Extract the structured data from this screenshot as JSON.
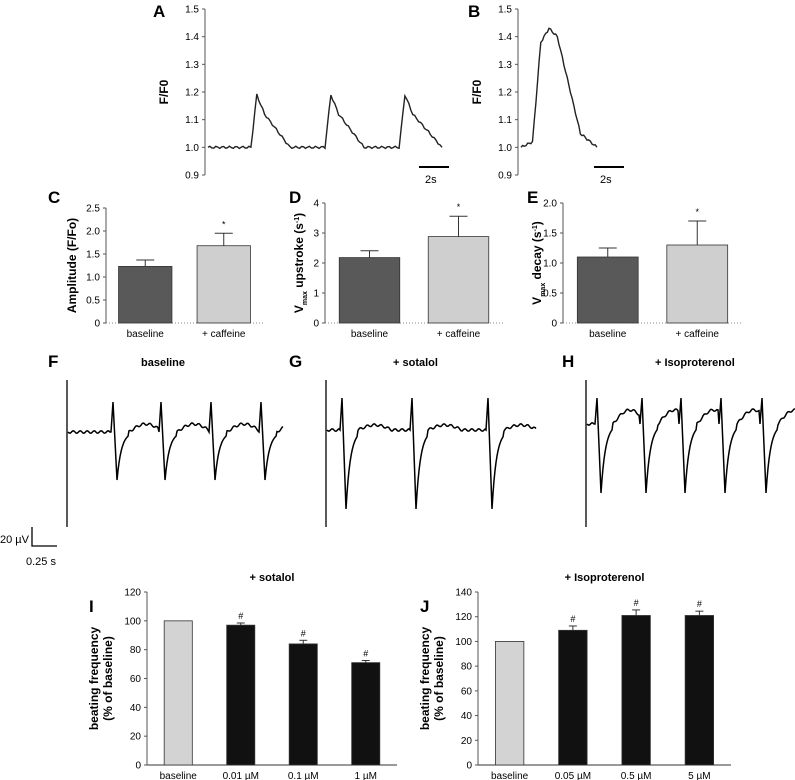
{
  "panels": {
    "A": {
      "label": "A"
    },
    "B": {
      "label": "B"
    },
    "C": {
      "label": "C"
    },
    "D": {
      "label": "D"
    },
    "E": {
      "label": "E"
    },
    "F": {
      "label": "F",
      "title": "baseline"
    },
    "G": {
      "label": "G",
      "title": "+ sotalol"
    },
    "H": {
      "label": "H",
      "title": "+ Isoproterenol"
    },
    "I": {
      "label": "I"
    },
    "J": {
      "label": "J"
    }
  },
  "scale_bars": {
    "calcium_time": "2s",
    "ecg_voltage": "20 µV",
    "ecg_time": "0.25 s"
  },
  "chart_data": [
    {
      "id": "A",
      "type": "line",
      "ylabel": "F/F0",
      "ylim": [
        0.9,
        1.5
      ],
      "yticks": [
        "0.9",
        "1.0",
        "1.1",
        "1.2",
        "1.3",
        "1.4",
        "1.5"
      ],
      "series": [
        {
          "x_s": [
            0,
            1.1,
            1.25,
            1.45,
            2.1,
            3.0,
            3.15,
            3.35,
            4.0,
            4.9,
            5.05,
            5.25,
            6.0
          ],
          "y": [
            1.0,
            1.0,
            1.19,
            1.12,
            1.0,
            1.0,
            1.19,
            1.12,
            1.0,
            1.0,
            1.19,
            1.12,
            1.0
          ]
        }
      ]
    },
    {
      "id": "B",
      "type": "line",
      "ylabel": "F/F0",
      "ylim": [
        0.9,
        1.5
      ],
      "yticks": [
        "0.9",
        "1.0",
        "1.1",
        "1.2",
        "1.3",
        "1.4",
        "1.5"
      ],
      "series": [
        {
          "x_s": [
            0,
            0.35,
            0.6,
            0.85,
            1.1,
            1.5,
            1.8,
            2.3
          ],
          "y": [
            1.0,
            1.02,
            1.38,
            1.43,
            1.4,
            1.2,
            1.05,
            1.0
          ]
        }
      ]
    },
    {
      "id": "C",
      "type": "bar",
      "ylabel": "Amplitude (F/Fo)",
      "ylim": [
        0,
        2.5
      ],
      "yticks": [
        "0",
        "0.5",
        "1.0",
        "1.5",
        "2.0",
        "2.5"
      ],
      "categories": [
        "baseline",
        "+ caffeine"
      ],
      "values": [
        1.23,
        1.68
      ],
      "errors": [
        0.14,
        0.27
      ],
      "significance": [
        "",
        "*"
      ],
      "colors": [
        "#595959",
        "#cfcfcf"
      ]
    },
    {
      "id": "D",
      "type": "bar",
      "ylabel_main": "V",
      "ylabel_sub": "max",
      "ylabel_rest": "upstroke (s",
      "ylabel_sup": "-1",
      "ylabel_end": ")",
      "ylim": [
        0,
        4
      ],
      "yticks": [
        "0",
        "1",
        "2",
        "3",
        "4"
      ],
      "categories": [
        "baseline",
        "+ caffeine"
      ],
      "values": [
        2.18,
        2.88
      ],
      "errors": [
        0.23,
        0.68
      ],
      "significance": [
        "",
        "*"
      ],
      "colors": [
        "#595959",
        "#cfcfcf"
      ]
    },
    {
      "id": "E",
      "type": "bar",
      "ylabel_main": "V",
      "ylabel_sub": "max",
      "ylabel_rest": "decay (s",
      "ylabel_sup": "-1",
      "ylabel_end": ")",
      "ylim": [
        0,
        2.0
      ],
      "yticks": [
        "0",
        "0.5",
        "1.0",
        "1.5",
        "2.0"
      ],
      "categories": [
        "baseline",
        "+ caffeine"
      ],
      "values": [
        1.1,
        1.3
      ],
      "errors": [
        0.15,
        0.4
      ],
      "significance": [
        "",
        "*"
      ],
      "colors": [
        "#595959",
        "#cfcfcf"
      ]
    },
    {
      "id": "I",
      "type": "bar",
      "title": "+ sotalol",
      "ylabel": [
        "beating frequency",
        "(% of baseline)"
      ],
      "ylim": [
        0,
        120
      ],
      "yticks": [
        "0",
        "20",
        "40",
        "60",
        "80",
        "100",
        "120"
      ],
      "categories": [
        "baseline",
        "0.01 µM",
        "0.1 µM",
        "1 µM"
      ],
      "values": [
        100,
        97,
        84,
        71
      ],
      "errors": [
        0,
        1.5,
        2.5,
        1.5
      ],
      "significance": [
        "",
        "#",
        "#",
        "#"
      ],
      "colors": [
        "#d3d3d3",
        "#111111",
        "#111111",
        "#111111"
      ]
    },
    {
      "id": "J",
      "type": "bar",
      "title": "+ Isoproterenol",
      "ylabel": [
        "beating frequency",
        "(% of baseline)"
      ],
      "ylim": [
        0,
        140
      ],
      "yticks": [
        "0",
        "20",
        "40",
        "60",
        "80",
        "100",
        "120",
        "140"
      ],
      "categories": [
        "baseline",
        "0.05 µM",
        "0.5 µM",
        "5 µM"
      ],
      "values": [
        100,
        109,
        121,
        121
      ],
      "errors": [
        0,
        3.5,
        4.5,
        3.5
      ],
      "significance": [
        "",
        "#",
        "#",
        "#"
      ],
      "colors": [
        "#d3d3d3",
        "#111111",
        "#111111",
        "#111111"
      ]
    }
  ]
}
